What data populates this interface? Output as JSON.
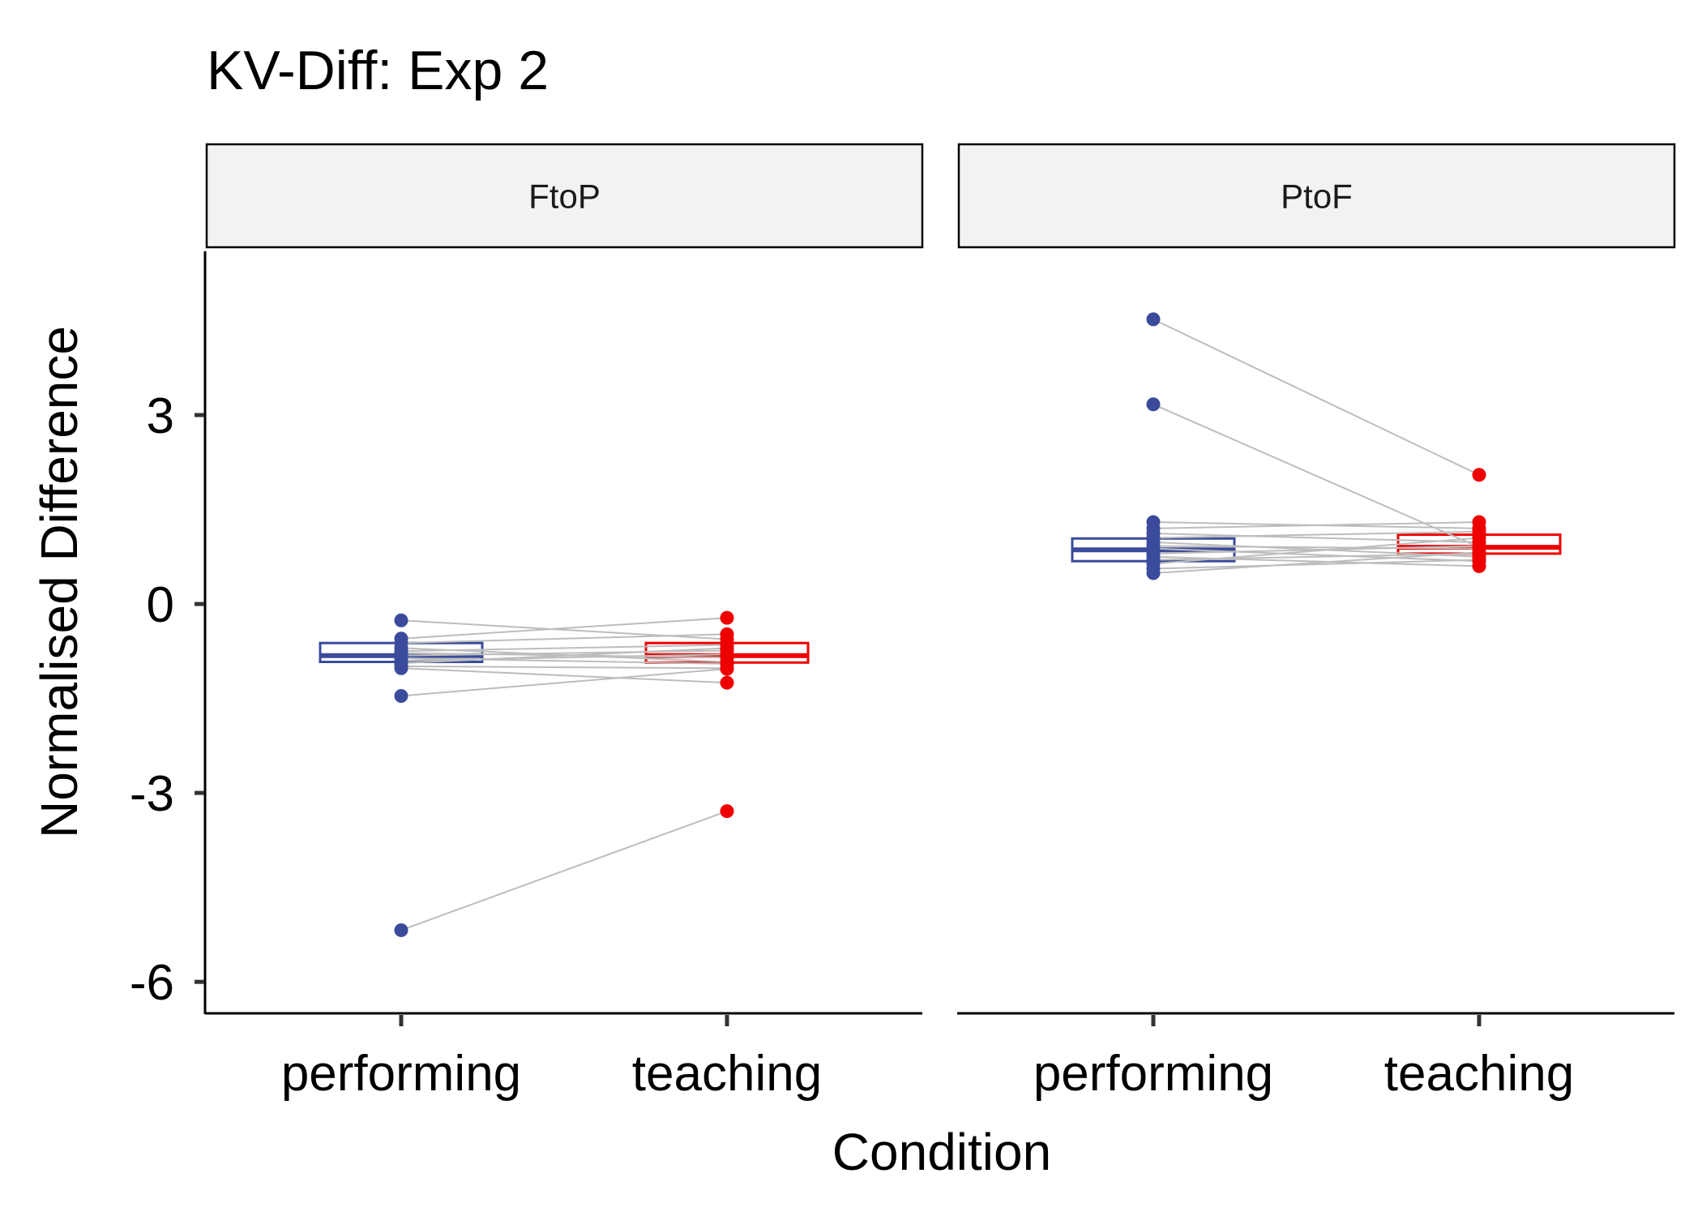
{
  "chart_data": {
    "type": "box-paired-dot",
    "title": "KV-Diff: Exp 2",
    "xlabel": "Condition",
    "ylabel": "Normalised Difference",
    "ylim": [
      -6.5,
      5.6
    ],
    "yticks": [
      3,
      0,
      -3,
      -6
    ],
    "ytick_labels": [
      "3",
      "0",
      "-3",
      "-6"
    ],
    "categories": [
      "performing",
      "teaching"
    ],
    "colors": {
      "performing": "#3b4b9b",
      "teaching": "#ee0000",
      "pair_line": "#bdbdbd"
    },
    "panels": [
      {
        "label": "FtoP",
        "box": {
          "performing": {
            "q1": -0.92,
            "median": -0.82,
            "q3": -0.62
          },
          "teaching": {
            "q1": -0.93,
            "median": -0.82,
            "q3": -0.62
          }
        },
        "pairs": [
          [
            -0.26,
            -0.56
          ],
          [
            -0.55,
            -0.22
          ],
          [
            -0.62,
            -0.48
          ],
          [
            -0.7,
            -0.92
          ],
          [
            -0.75,
            -0.65
          ],
          [
            -0.78,
            -0.85
          ],
          [
            -0.82,
            -0.74
          ],
          [
            -0.86,
            -0.95
          ],
          [
            -0.9,
            -0.8
          ],
          [
            -0.94,
            -0.7
          ],
          [
            -0.99,
            -1.02
          ],
          [
            -1.02,
            -1.25
          ],
          [
            -1.46,
            -1.03
          ],
          [
            -5.18,
            -3.29
          ]
        ]
      },
      {
        "label": "PtoF",
        "box": {
          "performing": {
            "q1": 0.68,
            "median": 0.86,
            "q3": 1.04
          },
          "teaching": {
            "q1": 0.8,
            "median": 0.9,
            "q3": 1.1
          }
        },
        "pairs": [
          [
            4.52,
            2.05
          ],
          [
            3.17,
            0.9
          ],
          [
            1.3,
            1.2
          ],
          [
            1.2,
            1.3
          ],
          [
            1.12,
            0.98
          ],
          [
            1.05,
            1.15
          ],
          [
            0.98,
            0.75
          ],
          [
            0.92,
            0.88
          ],
          [
            0.88,
            0.68
          ],
          [
            0.8,
            0.92
          ],
          [
            0.75,
            0.6
          ],
          [
            0.7,
            0.8
          ],
          [
            0.64,
            1.05
          ],
          [
            0.56,
            0.7
          ],
          [
            0.49,
            0.82
          ]
        ]
      }
    ]
  }
}
